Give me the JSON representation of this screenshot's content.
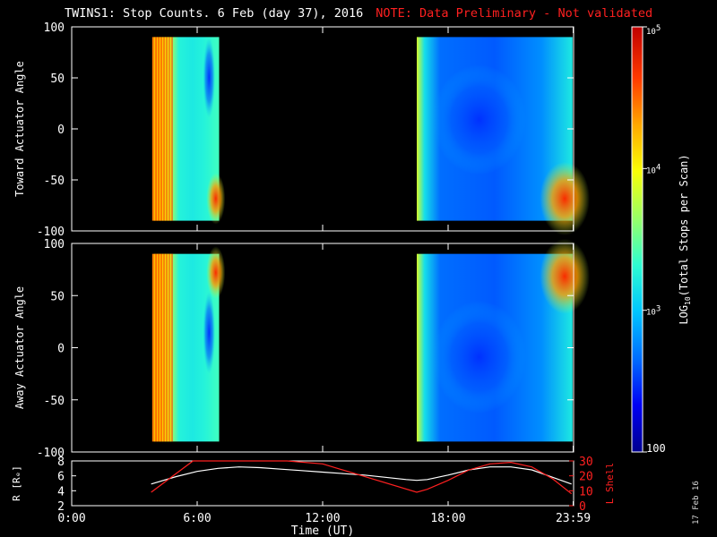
{
  "header": {
    "title": "TWINS1: Stop Counts.  6 Feb (day  37), 2016",
    "note": "NOTE: Data Preliminary - Not validated"
  },
  "footer": {
    "stamp": "17 Feb 16"
  },
  "colors": {
    "background": "#000000",
    "axes": "#ffffff",
    "note": "#ff2020",
    "r_line": "#ffffff",
    "l_line": "#ff2020",
    "scale": [
      "#00008f",
      "#0000ff",
      "#0070ff",
      "#00c8ff",
      "#30ffcf",
      "#9fff60",
      "#ffff00",
      "#ffa000",
      "#ff3000",
      "#c00000"
    ]
  },
  "chart_data": [
    {
      "type": "heatmap",
      "name": "toward",
      "ylabel": "Toward Actuator Angle",
      "ylim": [
        -100,
        100
      ],
      "yticks": [
        100,
        50,
        0,
        -50,
        -100
      ],
      "xlim": [
        0,
        24
      ],
      "data_windows": [
        {
          "start": "04:00",
          "end": "07:00",
          "start_h": 3.85,
          "end_h": 7.05,
          "angle_range": [
            -90,
            90
          ],
          "log_counts_range": [
            2.6,
            4.9
          ]
        },
        {
          "start": "16:30",
          "end": "23:59",
          "start_h": 16.5,
          "end_h": 23.95,
          "angle_range": [
            -90,
            90
          ],
          "log_counts_range": [
            2.2,
            4.8
          ]
        }
      ]
    },
    {
      "type": "heatmap",
      "name": "away",
      "ylabel": "Away Actuator Angle",
      "ylim": [
        -100,
        100
      ],
      "yticks": [
        100,
        50,
        0,
        -50,
        -100
      ],
      "xlim": [
        0,
        24
      ],
      "data_windows": [
        {
          "start": "04:00",
          "end": "07:00",
          "start_h": 3.85,
          "end_h": 7.05,
          "angle_range": [
            -90,
            90
          ],
          "log_counts_range": [
            2.6,
            4.9
          ]
        },
        {
          "start": "16:30",
          "end": "23:59",
          "start_h": 16.5,
          "end_h": 23.95,
          "angle_range": [
            -90,
            90
          ],
          "log_counts_range": [
            2.2,
            4.8
          ]
        }
      ]
    },
    {
      "type": "line",
      "name": "orbit",
      "ylabel": "R [Rₑ]",
      "ylabel2": "L Shell",
      "ylim": [
        2,
        8
      ],
      "yticks": [
        2,
        4,
        6,
        8
      ],
      "ylim2": [
        0,
        30
      ],
      "yticks2": [
        0,
        10,
        20,
        30
      ],
      "xlim": [
        0,
        24
      ],
      "xlabel": "Time (UT)",
      "xtick_labels": [
        "0:00",
        "6:00",
        "12:00",
        "18:00",
        "23:59"
      ],
      "xtick_values": [
        0,
        6,
        12,
        18,
        23.98
      ],
      "series": [
        {
          "name": "R",
          "axis": "left",
          "x": [
            3.8,
            5,
            6,
            7,
            8,
            9,
            10,
            11,
            12,
            13,
            14,
            15,
            16,
            16.5,
            17,
            18,
            19,
            20,
            21,
            22,
            23,
            23.9
          ],
          "values": [
            4.9,
            5.9,
            6.6,
            7.0,
            7.2,
            7.1,
            6.9,
            6.7,
            6.5,
            6.3,
            6.1,
            5.8,
            5.5,
            5.4,
            5.5,
            6.1,
            6.8,
            7.2,
            7.2,
            6.8,
            5.8,
            4.9
          ]
        },
        {
          "name": "L Shell",
          "axis": "right",
          "x": [
            3.8,
            5.8,
            6,
            10.3,
            12,
            16.5,
            17,
            18,
            19,
            20,
            21,
            22,
            23,
            23.9
          ],
          "values": [
            9,
            30,
            31,
            31,
            28,
            9,
            11,
            17,
            24,
            28,
            29,
            26,
            18,
            8
          ]
        }
      ]
    },
    {
      "type": "colorbar",
      "name": "color-scale",
      "label": "LOG10(Total Stops per Scan)",
      "label_main": "LOG",
      "label_sub": "10",
      "label_rest": "(Total Stops per Scan)",
      "log_range": [
        2,
        5
      ],
      "ticks": [
        {
          "log": 5,
          "label": "10",
          "sup": "5"
        },
        {
          "log": 4,
          "label": "10",
          "sup": "4"
        },
        {
          "log": 3,
          "label": "10",
          "sup": "3"
        },
        {
          "log": 2,
          "label": "100",
          "sup": ""
        }
      ]
    }
  ]
}
